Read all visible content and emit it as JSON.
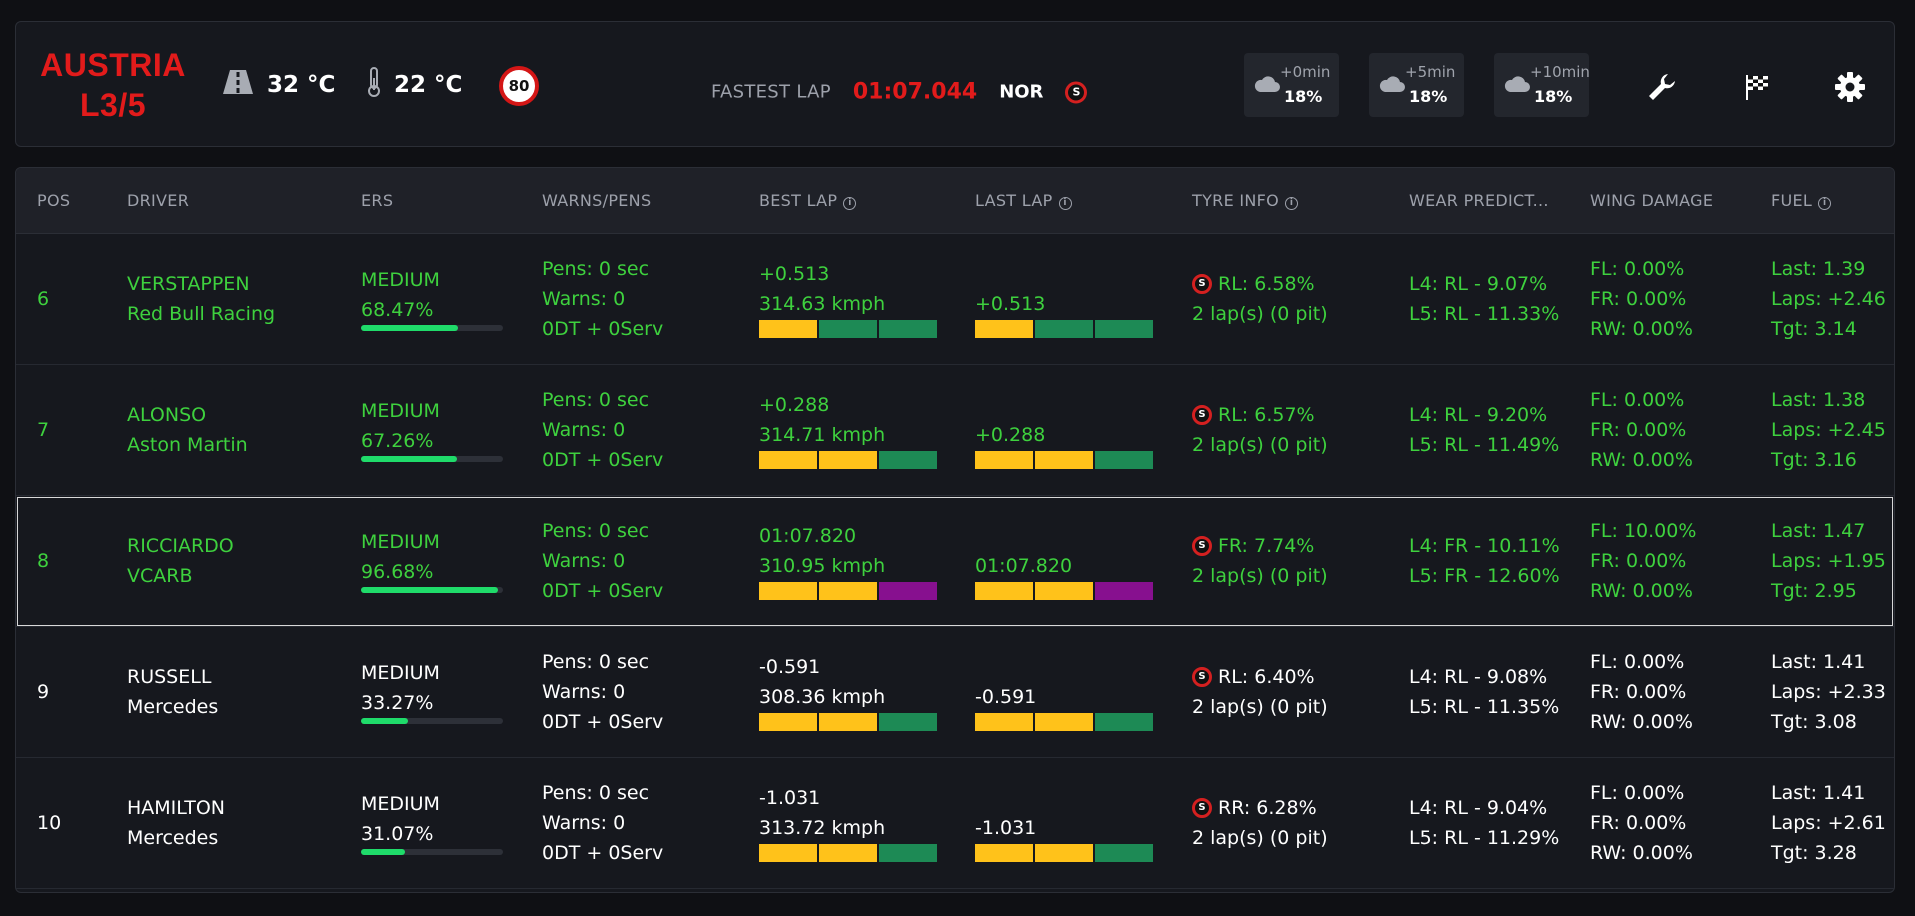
{
  "header": {
    "track_line1": "AUSTRIA",
    "track_line2": "L3/5",
    "track_temp": "32 °C",
    "air_temp": "22 °C",
    "speed_limit": "80",
    "fastest_label": "FASTEST LAP",
    "fastest_time": "01:07.044",
    "fastest_driver": "NOR",
    "forecasts": [
      {
        "time": "+0min",
        "rain": "18%"
      },
      {
        "time": "+5min",
        "rain": "18%"
      },
      {
        "time": "+10min",
        "rain": "18%"
      }
    ]
  },
  "columns": [
    "POS",
    "DRIVER",
    "ERS",
    "WARNS/PENS",
    "BEST LAP",
    "LAST LAP",
    "TYRE INFO",
    "WEAR PREDICT...",
    "WING DAMAGE",
    "FUEL"
  ],
  "rows": [
    {
      "pos": "6",
      "driver": "VERSTAPPEN",
      "team": "Red Bull Racing",
      "ers_mode": "MEDIUM",
      "ers_pct": "68.47%",
      "ers_frac": 0.6847,
      "pens": "Pens: 0 sec",
      "warns": "Warns: 0",
      "dt": "0DT + 0Serv",
      "best_delta": "+0.513",
      "best_speed": "314.63 kmph",
      "best_sectors": [
        "y",
        "g",
        "g"
      ],
      "last_delta": "+0.513",
      "last_sectors": [
        "y",
        "g",
        "g"
      ],
      "tyre_wear": "RL: 6.58%",
      "tyre_laps": "2 lap(s) (0 pit)",
      "wear_l4": "L4: RL - 9.07%",
      "wear_l5": "L5: RL - 11.33%",
      "wing_fl": "FL: 0.00%",
      "wing_fr": "FR: 0.00%",
      "wing_rw": "RW: 0.00%",
      "fuel_last": "Last: 1.39",
      "fuel_laps": "Laps: +2.46",
      "fuel_tgt": "Tgt: 3.14",
      "style": "green",
      "selected": false
    },
    {
      "pos": "7",
      "driver": "ALONSO",
      "team": "Aston Martin",
      "ers_mode": "MEDIUM",
      "ers_pct": "67.26%",
      "ers_frac": 0.6726,
      "pens": "Pens: 0 sec",
      "warns": "Warns: 0",
      "dt": "0DT + 0Serv",
      "best_delta": "+0.288",
      "best_speed": "314.71 kmph",
      "best_sectors": [
        "y",
        "y",
        "g"
      ],
      "last_delta": "+0.288",
      "last_sectors": [
        "y",
        "y",
        "g"
      ],
      "tyre_wear": "RL: 6.57%",
      "tyre_laps": "2 lap(s) (0 pit)",
      "wear_l4": "L4: RL - 9.20%",
      "wear_l5": "L5: RL - 11.49%",
      "wing_fl": "FL: 0.00%",
      "wing_fr": "FR: 0.00%",
      "wing_rw": "RW: 0.00%",
      "fuel_last": "Last: 1.38",
      "fuel_laps": "Laps: +2.45",
      "fuel_tgt": "Tgt: 3.16",
      "style": "green",
      "selected": false
    },
    {
      "pos": "8",
      "driver": "RICCIARDO",
      "team": "VCARB",
      "ers_mode": "MEDIUM",
      "ers_pct": "96.68%",
      "ers_frac": 0.9668,
      "pens": "Pens: 0 sec",
      "warns": "Warns: 0",
      "dt": "0DT + 0Serv",
      "best_delta": "01:07.820",
      "best_speed": "310.95 kmph",
      "best_sectors": [
        "y",
        "y",
        "p"
      ],
      "last_delta": "01:07.820",
      "last_sectors": [
        "y",
        "y",
        "p"
      ],
      "tyre_wear": "FR: 7.74%",
      "tyre_laps": "2 lap(s) (0 pit)",
      "wear_l4": "L4: FR - 10.11%",
      "wear_l5": "L5: FR - 12.60%",
      "wing_fl": "FL: 10.00%",
      "wing_fr": "FR: 0.00%",
      "wing_rw": "RW: 0.00%",
      "fuel_last": "Last: 1.47",
      "fuel_laps": "Laps: +1.95",
      "fuel_tgt": "Tgt: 2.95",
      "style": "green",
      "selected": true
    },
    {
      "pos": "9",
      "driver": "RUSSELL",
      "team": "Mercedes",
      "ers_mode": "MEDIUM",
      "ers_pct": "33.27%",
      "ers_frac": 0.3327,
      "pens": "Pens: 0 sec",
      "warns": "Warns: 0",
      "dt": "0DT + 0Serv",
      "best_delta": "-0.591",
      "best_speed": "308.36 kmph",
      "best_sectors": [
        "y",
        "y",
        "g"
      ],
      "last_delta": "-0.591",
      "last_sectors": [
        "y",
        "y",
        "g"
      ],
      "tyre_wear": "RL: 6.40%",
      "tyre_laps": "2 lap(s) (0 pit)",
      "wear_l4": "L4: RL - 9.08%",
      "wear_l5": "L5: RL - 11.35%",
      "wing_fl": "FL: 0.00%",
      "wing_fr": "FR: 0.00%",
      "wing_rw": "RW: 0.00%",
      "fuel_last": "Last: 1.41",
      "fuel_laps": "Laps: +2.33",
      "fuel_tgt": "Tgt: 3.08",
      "style": "white",
      "selected": false
    },
    {
      "pos": "10",
      "driver": "HAMILTON",
      "team": "Mercedes",
      "ers_mode": "MEDIUM",
      "ers_pct": "31.07%",
      "ers_frac": 0.3107,
      "pens": "Pens: 0 sec",
      "warns": "Warns: 0",
      "dt": "0DT + 0Serv",
      "best_delta": "-1.031",
      "best_speed": "313.72 kmph",
      "best_sectors": [
        "y",
        "y",
        "g"
      ],
      "last_delta": "-1.031",
      "last_sectors": [
        "y",
        "y",
        "g"
      ],
      "tyre_wear": "RR: 6.28%",
      "tyre_laps": "2 lap(s) (0 pit)",
      "wear_l4": "L4: RL - 9.04%",
      "wear_l5": "L5: RL - 11.29%",
      "wing_fl": "FL: 0.00%",
      "wing_fr": "FR: 0.00%",
      "wing_rw": "RW: 0.00%",
      "fuel_last": "Last: 1.41",
      "fuel_laps": "Laps: +2.61",
      "fuel_tgt": "Tgt: 3.28",
      "style": "white",
      "selected": false
    }
  ],
  "icons": {
    "track_temp": "road-icon",
    "air_temp": "thermometer-icon",
    "weather": "cloud-icon",
    "tools": [
      "wrench-icon",
      "checkered-flag-icon",
      "gear-icon"
    ],
    "tyre": "soft-tyre-icon"
  },
  "colors": {
    "accent_red": "#e21b1b",
    "green_text": "#3ed13e",
    "sector_yellow": "#ffc21a",
    "sector_green": "#1d8a55",
    "sector_purple": "#87108f",
    "ers_bar": "#1fdb6a"
  }
}
